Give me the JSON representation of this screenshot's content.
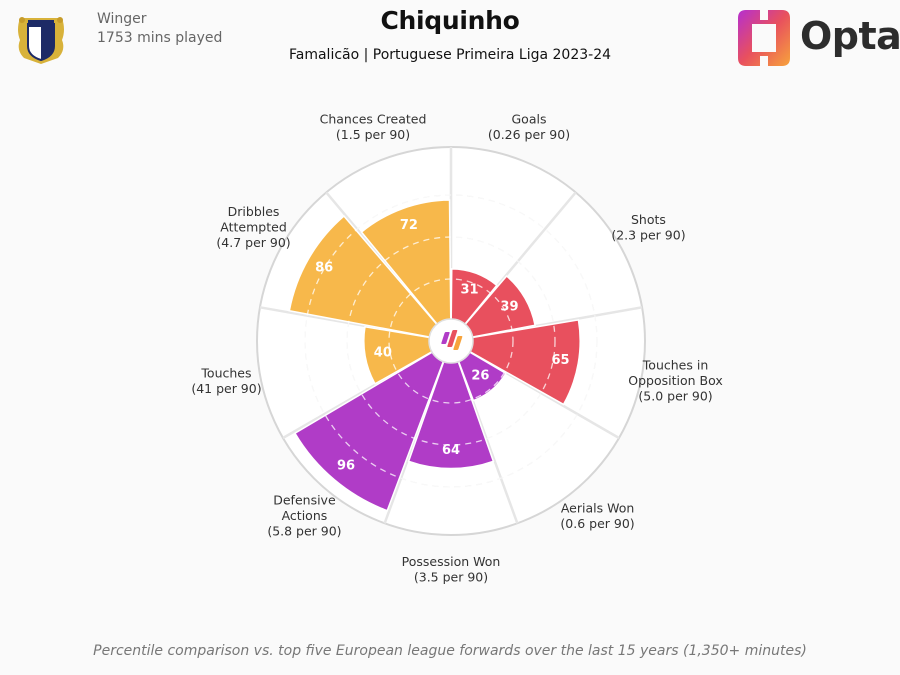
{
  "header": {
    "position": "Winger",
    "minutes": "1753 mins played",
    "title": "Chiquinho",
    "subtitle": "Famalicão | Portuguese Primeira Liga 2023-24",
    "brand": "Opta"
  },
  "footer": {
    "note": "Percentile comparison vs. top five European league forwards over the last 15 years (1,350+ minutes)"
  },
  "colors": {
    "attacking": "#e8505e",
    "possession": "#f7b84b",
    "defending": "#b03cc7",
    "background": "#fafafa"
  },
  "chart_data": {
    "type": "radar",
    "scale": [
      0,
      100
    ],
    "categories": [
      {
        "label": [
          "Goals",
          "(0.26 per 90)"
        ],
        "value": 31,
        "group": "attacking"
      },
      {
        "label": [
          "Shots",
          "(2.3 per 90)"
        ],
        "value": 39,
        "group": "attacking"
      },
      {
        "label": [
          "Touches in",
          "Opposition Box",
          "(5.0 per 90)"
        ],
        "value": 65,
        "group": "attacking"
      },
      {
        "label": [
          "Aerials Won",
          "(0.6 per 90)"
        ],
        "value": 26,
        "group": "defending"
      },
      {
        "label": [
          "Possession Won",
          "(3.5 per 90)"
        ],
        "value": 64,
        "group": "defending"
      },
      {
        "label": [
          "Defensive",
          "Actions",
          "(5.8 per 90)"
        ],
        "value": 96,
        "group": "defending"
      },
      {
        "label": [
          "Touches",
          "(41 per 90)"
        ],
        "value": 40,
        "group": "possession"
      },
      {
        "label": [
          "Dribbles",
          "Attempted",
          "(4.7 per 90)"
        ],
        "value": 86,
        "group": "possession"
      },
      {
        "label": [
          "Chances Created",
          "(1.5 per 90)"
        ],
        "value": 72,
        "group": "possession"
      }
    ]
  }
}
